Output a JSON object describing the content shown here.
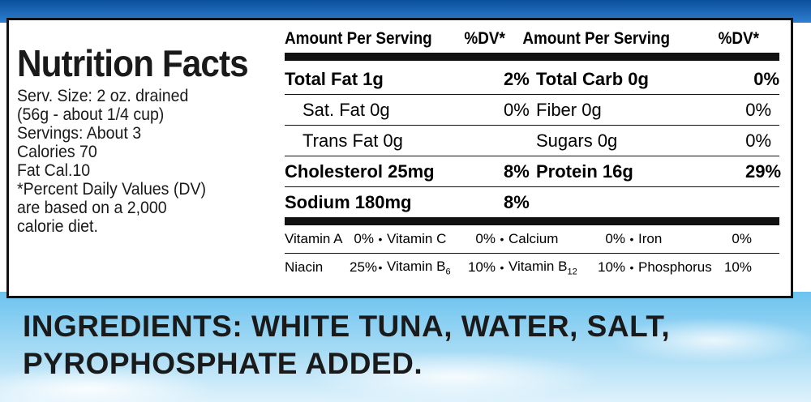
{
  "panel": {
    "title": "Nutrition Facts",
    "serving_lines": [
      "Serv. Size: 2 oz. drained",
      "(56g - about 1/4 cup)",
      "Servings: About 3",
      "Calories 70",
      "Fat Cal.10",
      "*Percent Daily Values (DV)",
      "are based on a 2,000",
      "calorie diet."
    ],
    "header": {
      "amount_1": "Amount Per Serving",
      "dv_1": "%DV*",
      "amount_2": "Amount Per Serving",
      "dv_2": "%DV*"
    },
    "rows": [
      {
        "n1": "Total Fat 1g",
        "v1": "2%",
        "n2": "Total Carb 0g",
        "v2": "0%"
      },
      {
        "n1": "Sat. Fat 0g",
        "v1": "0%",
        "n2": "Fiber 0g",
        "v2": "0%"
      },
      {
        "n1": "Trans Fat 0g",
        "v1": "",
        "n2": "Sugars 0g",
        "v2": "0%"
      },
      {
        "n1": "Cholesterol 25mg",
        "v1": "8%",
        "n2": "Protein 16g",
        "v2": "29%"
      },
      {
        "n1": "Sodium 180mg",
        "v1": "8%",
        "n2": "",
        "v2": ""
      }
    ],
    "vitamins": [
      [
        {
          "name": "Vitamin A",
          "value": "0%"
        },
        {
          "name": "Vitamin C",
          "value": "0%"
        },
        {
          "name": "Calcium",
          "value": "0%"
        },
        {
          "name": "Iron",
          "value": "0%"
        }
      ],
      [
        {
          "name": "Niacin",
          "value": "25%"
        },
        {
          "name": "Vitamin B",
          "sub": "6",
          "value": "10%"
        },
        {
          "name": "Vitamin B",
          "sub": "12",
          "value": "10%"
        },
        {
          "name": "Phosphorus",
          "value": "10%"
        }
      ]
    ]
  },
  "ingredients": {
    "line1": "INGREDIENTS: WHITE TUNA, WATER, SALT,",
    "line2": "PYROPHOSPHATE ADDED."
  },
  "colors": {
    "top_band": "#0a4f9c",
    "sky": "#6cc3ef"
  }
}
